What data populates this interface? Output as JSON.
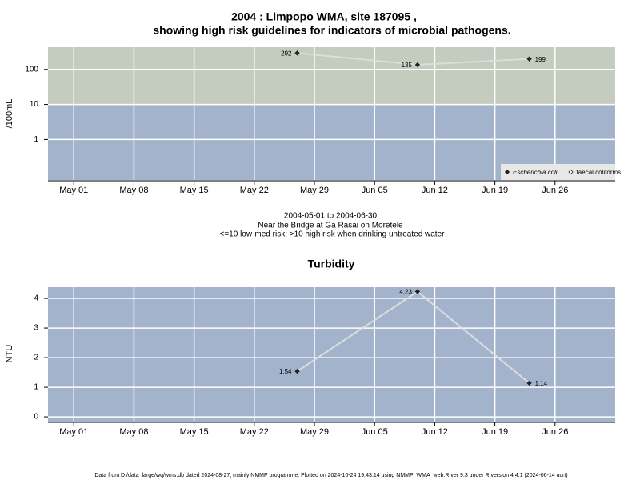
{
  "chart_data": [
    {
      "type": "line",
      "title": "2004 : Limpopo WMA, site 187095 ,",
      "subtitle": "showing high risk guidelines for indicators of microbial pathogens.",
      "y_label": "/100mL",
      "log_scale": true,
      "x": [
        "2004-05-27",
        "2004-06-10",
        "2004-06-23"
      ],
      "series": [
        {
          "name": "Escherichia coli",
          "color": "#222222",
          "values": [
            292,
            135,
            199
          ]
        },
        {
          "name": "faecal coliforms",
          "color": "#222222",
          "values": [
            null,
            null,
            null
          ]
        }
      ],
      "xlim": [
        "2004-04-28",
        "2004-07-03"
      ],
      "xticks": [
        {
          "value": "2004-05-01",
          "label": "May 01"
        },
        {
          "value": "2004-05-08",
          "label": "May 08"
        },
        {
          "value": "2004-05-15",
          "label": "May 15"
        },
        {
          "value": "2004-05-22",
          "label": "May 22"
        },
        {
          "value": "2004-05-29",
          "label": "May 29"
        },
        {
          "value": "2004-06-05",
          "label": "Jun 05"
        },
        {
          "value": "2004-06-12",
          "label": "Jun 12"
        },
        {
          "value": "2004-06-19",
          "label": "Jun 19"
        },
        {
          "value": "2004-06-26",
          "label": "Jun 26"
        }
      ],
      "ylim": [
        0.07,
        430
      ],
      "yticks": [
        1,
        10,
        100
      ],
      "risk_threshold": 10,
      "background_color": "#a3b3cc",
      "high_risk_color": "#c4ccc0",
      "line_color": "#dddddd",
      "grid": true,
      "legend": "lower right",
      "annotations": [
        "2004-05-01 to 2004-06-30",
        "Near the Bridge at Ga Rasai on Moretele",
        "<=10 low-med risk; >10 high risk when drinking untreated water"
      ]
    },
    {
      "type": "line",
      "title": "Turbidity",
      "y_label": "NTU",
      "log_scale": false,
      "x": [
        "2004-05-27",
        "2004-06-10",
        "2004-06-23"
      ],
      "series": [
        {
          "name": "Turbidity",
          "color": "#222222",
          "values": [
            1.54,
            4.23,
            1.14
          ]
        }
      ],
      "xlim": [
        "2004-04-28",
        "2004-07-03"
      ],
      "xticks": [
        {
          "value": "2004-05-01",
          "label": "May 01"
        },
        {
          "value": "2004-05-08",
          "label": "May 08"
        },
        {
          "value": "2004-05-15",
          "label": "May 15"
        },
        {
          "value": "2004-05-22",
          "label": "May 22"
        },
        {
          "value": "2004-05-29",
          "label": "May 29"
        },
        {
          "value": "2004-06-05",
          "label": "Jun 05"
        },
        {
          "value": "2004-06-12",
          "label": "Jun 12"
        },
        {
          "value": "2004-06-19",
          "label": "Jun 19"
        },
        {
          "value": "2004-06-26",
          "label": "Jun 26"
        }
      ],
      "ylim": [
        -0.16,
        4.38
      ],
      "yticks": [
        0,
        1,
        2,
        3,
        4
      ],
      "background_color": "#a3b3cc",
      "line_color": "#dddddd",
      "grid": true
    }
  ],
  "footer": "Data from D:/data_large/wq/wms.db dated 2024-08-27, mainly NMMP programme. Plotted on 2024-10-24 19:43:14 using NMMP_WMA_web.R ver 9.3 under R version 4.4.1 (2024-06-14 ucrt)"
}
